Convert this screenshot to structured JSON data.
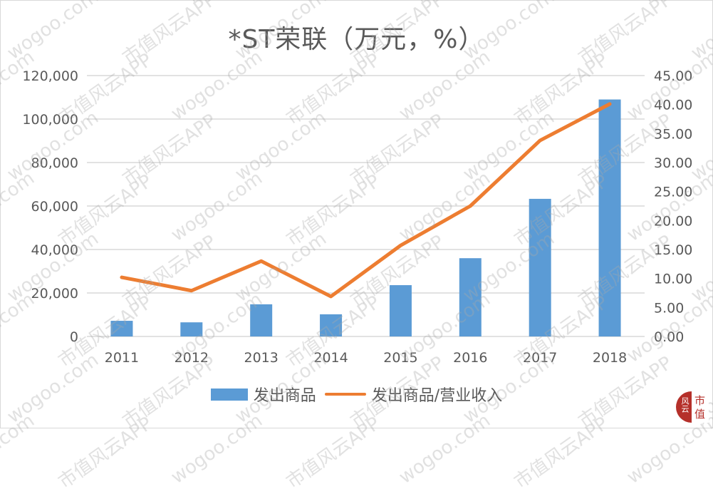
{
  "chart_data": {
    "type": "bar+line",
    "title": "*ST荣联（万元，%）",
    "categories": [
      "2011",
      "2012",
      "2013",
      "2014",
      "2015",
      "2016",
      "2017",
      "2018"
    ],
    "series": [
      {
        "name": "发出商品",
        "type": "bar",
        "axis": "left",
        "color": "#5b9bd5",
        "values": [
          7200,
          6500,
          14800,
          10200,
          23600,
          36000,
          63300,
          109000
        ]
      },
      {
        "name": "发出商品/营业收入",
        "type": "line",
        "axis": "right",
        "color": "#ed7d31",
        "values": [
          10.2,
          7.9,
          13.0,
          6.9,
          15.7,
          22.5,
          33.8,
          40.1
        ]
      }
    ],
    "left_axis": {
      "ylim": [
        0,
        120000
      ],
      "ticks": [
        "0",
        "20,000",
        "40,000",
        "60,000",
        "80,000",
        "100,000",
        "120,000"
      ]
    },
    "right_axis": {
      "ylim": [
        0,
        45
      ],
      "ticks": [
        "0.00",
        "5.00",
        "10.00",
        "15.00",
        "20.00",
        "25.00",
        "30.00",
        "35.00",
        "40.00",
        "45.00"
      ]
    },
    "grid": true,
    "legend_position": "bottom"
  },
  "legend": {
    "bar_label": "发出商品",
    "line_label": "发出商品/营业收入"
  },
  "watermark": {
    "text_a": "wogoo.com",
    "text_b": "市值风云APP"
  },
  "logo": {
    "char1": "市",
    "char2": "值",
    "brush": "风云"
  }
}
